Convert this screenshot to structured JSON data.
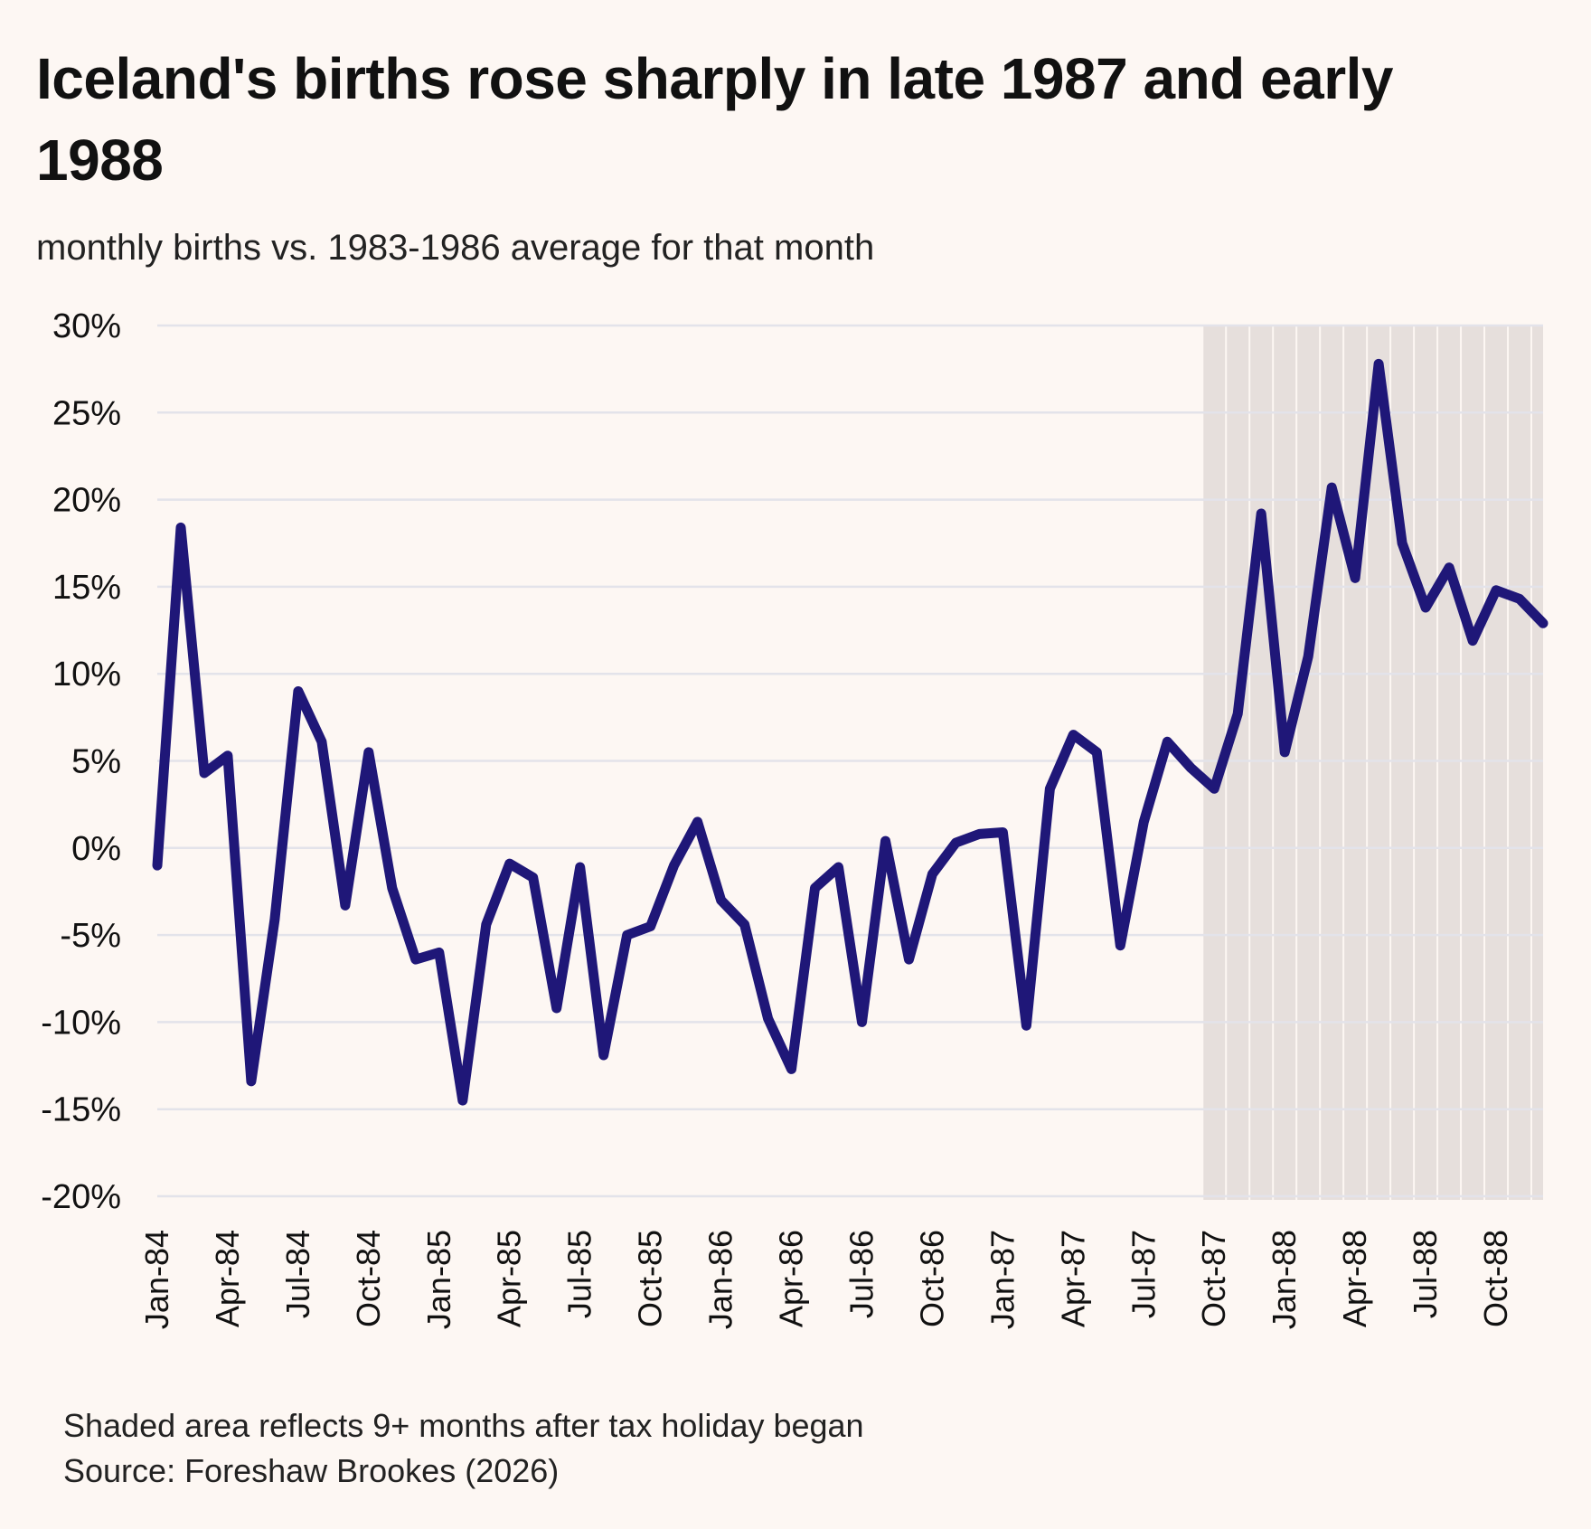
{
  "chart_data": {
    "type": "line",
    "title": "Iceland's births rose sharply in late 1987 and early 1988",
    "subtitle": "monthly births vs. 1983-1986 average for that month",
    "xlabel": "",
    "ylabel": "",
    "ylim": [
      -20,
      30
    ],
    "yticks": [
      30,
      25,
      20,
      15,
      10,
      5,
      0,
      -5,
      -10,
      -15,
      -20
    ],
    "ytick_labels": [
      "30%",
      "25%",
      "20%",
      "15%",
      "10%",
      "5%",
      "0%",
      "-5%",
      "-10%",
      "-15%",
      "-20%"
    ],
    "grid": "horizontal",
    "x": [
      "Jan-84",
      "Feb-84",
      "Mar-84",
      "Apr-84",
      "May-84",
      "Jun-84",
      "Jul-84",
      "Aug-84",
      "Sep-84",
      "Oct-84",
      "Nov-84",
      "Dec-84",
      "Jan-85",
      "Feb-85",
      "Mar-85",
      "Apr-85",
      "May-85",
      "Jun-85",
      "Jul-85",
      "Aug-85",
      "Sep-85",
      "Oct-85",
      "Nov-85",
      "Dec-85",
      "Jan-86",
      "Feb-86",
      "Mar-86",
      "Apr-86",
      "May-86",
      "Jun-86",
      "Jul-86",
      "Aug-86",
      "Sep-86",
      "Oct-86",
      "Nov-86",
      "Dec-86",
      "Jan-87",
      "Feb-87",
      "Mar-87",
      "Apr-87",
      "May-87",
      "Jun-87",
      "Jul-87",
      "Aug-87",
      "Sep-87",
      "Oct-87",
      "Nov-87",
      "Dec-87",
      "Jan-88",
      "Feb-88",
      "Mar-88",
      "Apr-88",
      "May-88",
      "Jun-88",
      "Jul-88",
      "Aug-88",
      "Sep-88",
      "Oct-88",
      "Nov-88",
      "Dec-88"
    ],
    "xtick_labels": [
      "Jan-84",
      "Apr-84",
      "Jul-84",
      "Oct-84",
      "Jan-85",
      "Apr-85",
      "Jul-85",
      "Oct-85",
      "Jan-86",
      "Apr-86",
      "Jul-86",
      "Oct-86",
      "Jan-87",
      "Apr-87",
      "Jul-87",
      "Oct-87",
      "Jan-88",
      "Apr-88",
      "Jul-88",
      "Oct-88"
    ],
    "series": [
      {
        "name": "monthly births vs. 1983-1986 average",
        "color": "#1f1778",
        "values": [
          -1.0,
          18.4,
          4.3,
          5.3,
          -13.4,
          -4.1,
          9.0,
          6.1,
          -3.3,
          5.5,
          -2.3,
          -6.4,
          -6.0,
          -14.5,
          -4.4,
          -0.9,
          -1.7,
          -9.2,
          -1.1,
          -11.9,
          -5.0,
          -4.5,
          -1.0,
          1.5,
          -3.0,
          -4.4,
          -9.8,
          -12.7,
          -2.3,
          -1.1,
          -10.0,
          0.4,
          -6.4,
          -1.5,
          0.3,
          0.8,
          0.9,
          -10.2,
          3.4,
          6.5,
          5.5,
          -5.6,
          1.5,
          6.1,
          4.6,
          3.4,
          7.7,
          19.2,
          5.5,
          11.0,
          20.7,
          15.5,
          27.8,
          17.5,
          13.8,
          16.1,
          11.9,
          14.8,
          14.3,
          12.9
        ]
      }
    ],
    "shaded_region": {
      "from": "Oct-87",
      "to": "Dec-88",
      "meaning": "9+ months after tax holiday began",
      "color": "#e6dfdc"
    },
    "notes": [
      "Shaded area reflects 9+ months after tax holiday began",
      "Source: Foreshaw Brookes (2026)"
    ]
  },
  "colors": {
    "background": "#fdf7f3",
    "gridline": "#e3e3ea",
    "shade": "#e6dfdc",
    "line": "#1f1778"
  }
}
